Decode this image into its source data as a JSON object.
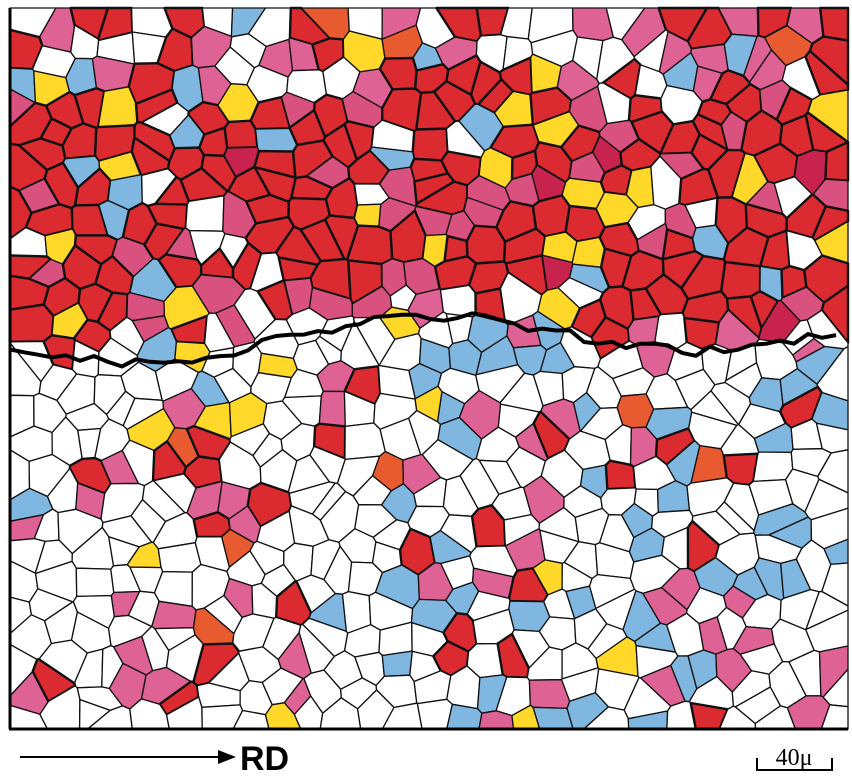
{
  "labels": {
    "direction": "RD",
    "scale": "40μ"
  }
}
